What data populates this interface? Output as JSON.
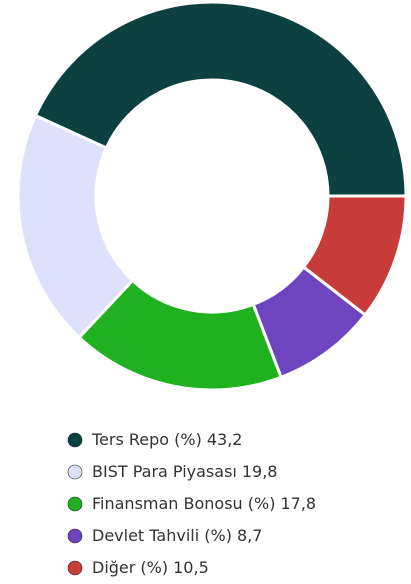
{
  "chart_data": {
    "type": "donut",
    "categories": [
      "Ters Repo (%)",
      "BIST Para Piyasası",
      "Finansman Bonosu (%)",
      "Devlet Tahvili (%)",
      "Diğer (%)"
    ],
    "values": [
      43.2,
      19.8,
      17.8,
      8.7,
      10.5
    ],
    "value_labels": [
      "43,2",
      "19,8",
      "17,8",
      "8,7",
      "10,5"
    ],
    "colors": [
      "#0d4040",
      "#dde1fb",
      "#1fb11f",
      "#6e45c0",
      "#c73c38"
    ],
    "legend": "bottom"
  }
}
